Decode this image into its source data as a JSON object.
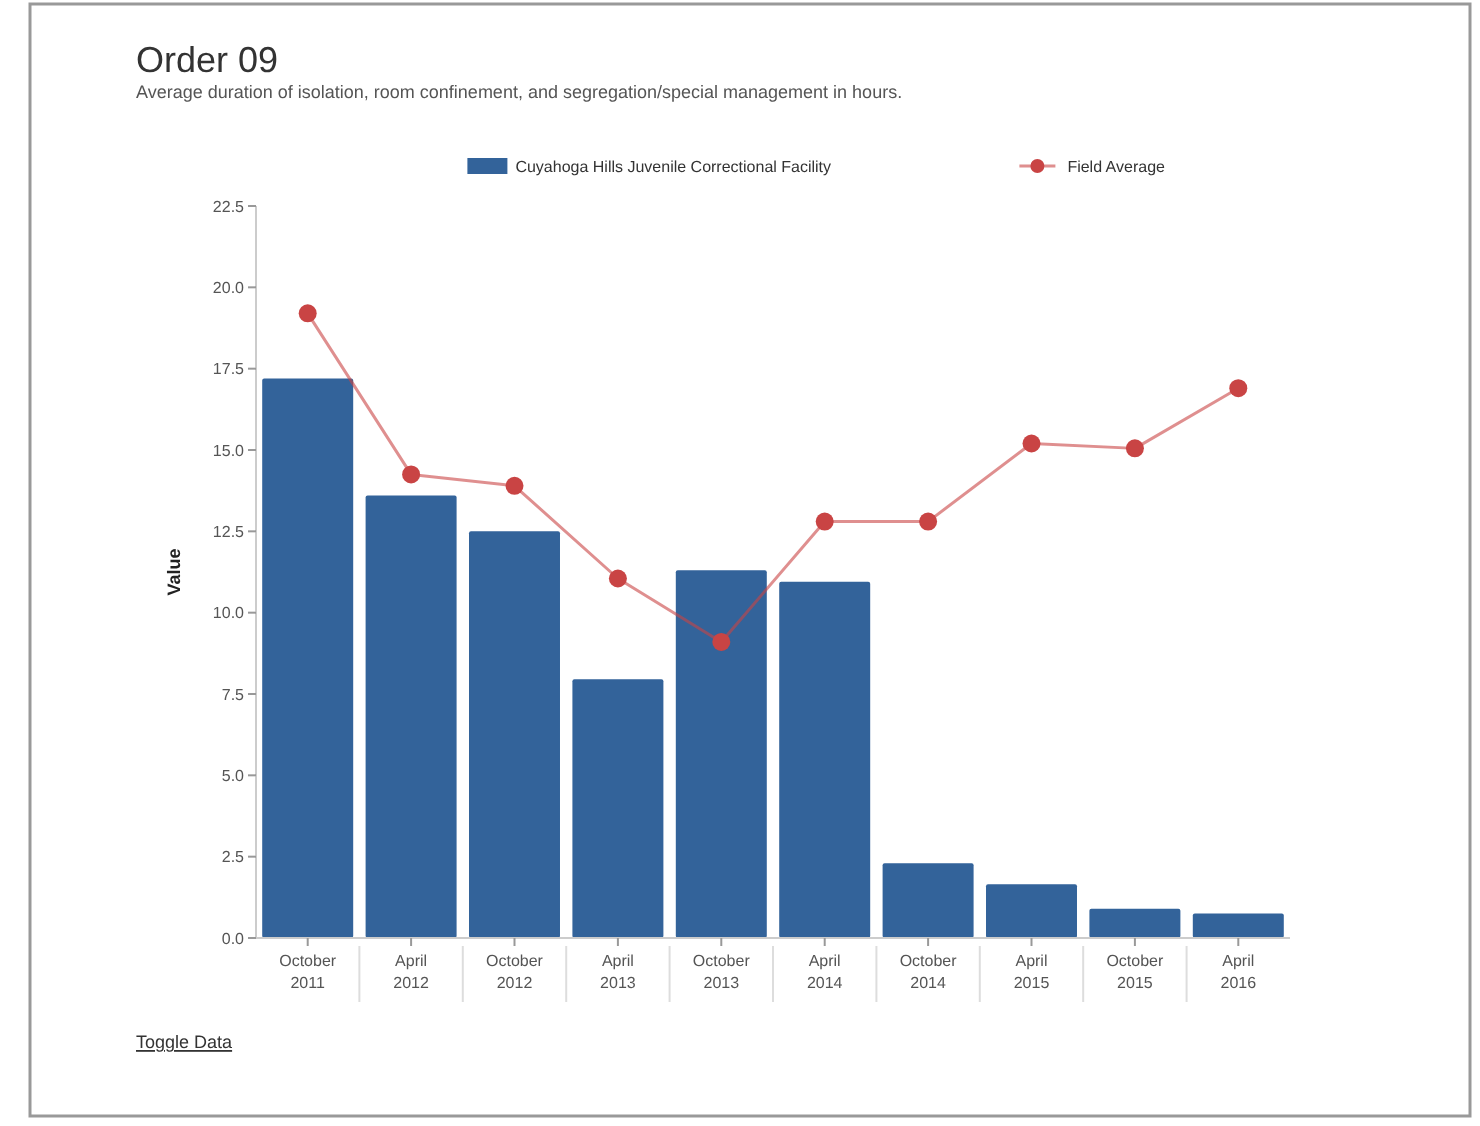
{
  "chart_data": {
    "type": "bar",
    "title": "Order 09",
    "subtitle": "Average duration of isolation, room confinement, and segregation/special management in hours.",
    "ylabel": "Value",
    "annotations": [
      "Toggle Data"
    ],
    "categories": [
      "October 2011",
      "April 2012",
      "October 2012",
      "April 2013",
      "October 2013",
      "April 2014",
      "October 2014",
      "April 2015",
      "October 2015",
      "April 2016"
    ],
    "series": [
      {
        "name": "Cuyahoga Hills Juvenile Correctional Facility",
        "color": "#33639a",
        "values": [
          17.2,
          13.6,
          12.5,
          7.95,
          11.3,
          10.95,
          2.3,
          1.65,
          0.9,
          0.75
        ]
      },
      {
        "name": "Field Average",
        "type": "line",
        "color": "#c94444",
        "values": [
          19.2,
          14.25,
          13.9,
          11.05,
          9.1,
          12.8,
          12.8,
          15.2,
          15.05,
          16.9
        ]
      }
    ],
    "ylim": [
      0,
      22.5
    ],
    "yticks": [
      {
        "value": 0,
        "label": "0.0"
      },
      {
        "value": 2.5,
        "label": "2.5"
      },
      {
        "value": 5,
        "label": "5.0"
      },
      {
        "value": 7.5,
        "label": "7.5"
      },
      {
        "value": 10,
        "label": "10.0"
      },
      {
        "value": 12.5,
        "label": "12.5"
      },
      {
        "value": 15,
        "label": "15.0"
      },
      {
        "value": 17.5,
        "label": "17.5"
      },
      {
        "value": 20,
        "label": "20.0"
      },
      {
        "value": 22.5,
        "label": "22.5"
      }
    ],
    "grid": false,
    "legend": "top",
    "marker": "circle",
    "line_style": "solid"
  }
}
